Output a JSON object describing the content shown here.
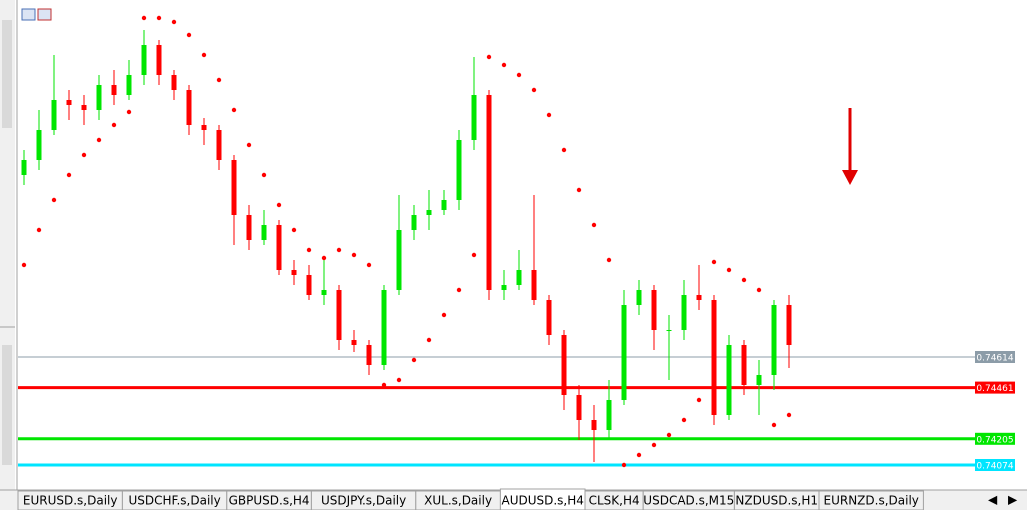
{
  "chart_data": {
    "type": "candlestick",
    "ylim": [
      0.73949,
      0.76399
    ],
    "bull_color": "#00e600",
    "bear_color": "#ff0000",
    "sar_color": "#ff0000",
    "open": [
      0.75524,
      0.75599,
      0.75749,
      0.75899,
      0.75874,
      0.75849,
      0.75974,
      0.75924,
      0.76024,
      0.76174,
      0.76024,
      0.75949,
      0.75774,
      0.75749,
      0.75599,
      0.75324,
      0.75199,
      0.75274,
      0.75049,
      0.75024,
      0.74924,
      0.74949,
      0.74699,
      0.74674,
      0.74574,
      0.74949,
      0.75249,
      0.75324,
      0.75349,
      0.75399,
      0.75699,
      0.75924,
      0.74949,
      0.74974,
      0.75049,
      0.74899,
      0.74724,
      0.74424,
      0.74299,
      0.74249,
      0.74399,
      0.74874,
      0.74949,
      0.74749,
      0.74749,
      0.74924,
      0.74899,
      0.74324,
      0.74674,
      0.74474,
      0.74524,
      0.74874
    ],
    "high": [
      0.75649,
      0.75849,
      0.76124,
      0.75949,
      0.75924,
      0.76024,
      0.76049,
      0.76099,
      0.76249,
      0.76199,
      0.76049,
      0.75974,
      0.75809,
      0.75774,
      0.75624,
      0.75374,
      0.75349,
      0.75299,
      0.75099,
      0.75074,
      0.75099,
      0.74974,
      0.74749,
      0.74699,
      0.74974,
      0.75424,
      0.75374,
      0.75449,
      0.75449,
      0.75749,
      0.76114,
      0.75949,
      0.75049,
      0.75149,
      0.75424,
      0.74924,
      0.74749,
      0.74474,
      0.74374,
      0.74499,
      0.74949,
      0.74999,
      0.74974,
      0.74824,
      0.74999,
      0.75074,
      0.74924,
      0.74724,
      0.74699,
      0.74599,
      0.74899,
      0.74924
    ],
    "low": [
      0.75474,
      0.75549,
      0.75724,
      0.75799,
      0.75774,
      0.75799,
      0.75874,
      0.75899,
      0.75974,
      0.75974,
      0.75899,
      0.75724,
      0.75674,
      0.75549,
      0.75174,
      0.75149,
      0.75174,
      0.75024,
      0.74974,
      0.74899,
      0.74874,
      0.74649,
      0.74639,
      0.74524,
      0.74549,
      0.74924,
      0.75199,
      0.75249,
      0.75324,
      0.75349,
      0.75649,
      0.74899,
      0.74899,
      0.74949,
      0.74874,
      0.74674,
      0.74349,
      0.74199,
      0.74089,
      0.74199,
      0.74374,
      0.74824,
      0.74649,
      0.74499,
      0.74699,
      0.74849,
      0.74274,
      0.74299,
      0.74424,
      0.74324,
      0.74449,
      0.74559
    ],
    "close": [
      0.75599,
      0.75749,
      0.75899,
      0.75874,
      0.75849,
      0.75974,
      0.75924,
      0.76024,
      0.76174,
      0.76024,
      0.75949,
      0.75774,
      0.75749,
      0.75599,
      0.75324,
      0.75199,
      0.75274,
      0.75049,
      0.75024,
      0.74924,
      0.74949,
      0.74699,
      0.74674,
      0.74574,
      0.74949,
      0.75249,
      0.75324,
      0.75349,
      0.75399,
      0.75699,
      0.75924,
      0.74949,
      0.74974,
      0.75049,
      0.74899,
      0.74724,
      0.74424,
      0.74299,
      0.74249,
      0.74399,
      0.74874,
      0.74949,
      0.74749,
      0.74749,
      0.74924,
      0.74899,
      0.74324,
      0.74674,
      0.74474,
      0.74524,
      0.74874,
      0.74674
    ],
    "sar": [
      0.75074,
      0.75249,
      0.75399,
      0.75524,
      0.75624,
      0.75699,
      0.75774,
      0.75839,
      0.76309,
      0.76309,
      0.76289,
      0.76224,
      0.76124,
      0.75999,
      0.75849,
      0.75674,
      0.75524,
      0.75374,
      0.75249,
      0.75149,
      0.75109,
      0.75149,
      0.75124,
      0.75074,
      0.74474,
      0.74499,
      0.74599,
      0.74699,
      0.74824,
      0.74949,
      0.75124,
      0.76114,
      0.76074,
      0.76024,
      0.75949,
      0.75824,
      0.75649,
      0.75449,
      0.75274,
      0.75099,
      0.74074,
      0.74124,
      0.74174,
      0.74224,
      0.74299,
      0.74399,
      0.75089,
      0.75049,
      0.74999,
      0.74949,
      0.74274,
      0.74324
    ],
    "levels": [
      {
        "value": 0.74614,
        "color": "#8c9ca8",
        "width": 1
      },
      {
        "value": 0.74461,
        "color": "#ff0000",
        "width": 3
      },
      {
        "value": 0.74205,
        "color": "#00e600",
        "width": 3
      },
      {
        "value": 0.74074,
        "color": "#00e5ff",
        "width": 3
      }
    ]
  },
  "tabs": {
    "labels": [
      "EURUSD.s,Daily",
      "USDCHF.s,Daily",
      "GBPUSD.s,H4",
      "USDJPY.s,Daily",
      "XUL.s,Daily",
      "AUDUSD.s,H4",
      "CLSK,H4",
      "USDCAD.s,M15",
      "NZDUSD.s,H1",
      "EURNZD.s,Daily"
    ],
    "active": 5
  }
}
